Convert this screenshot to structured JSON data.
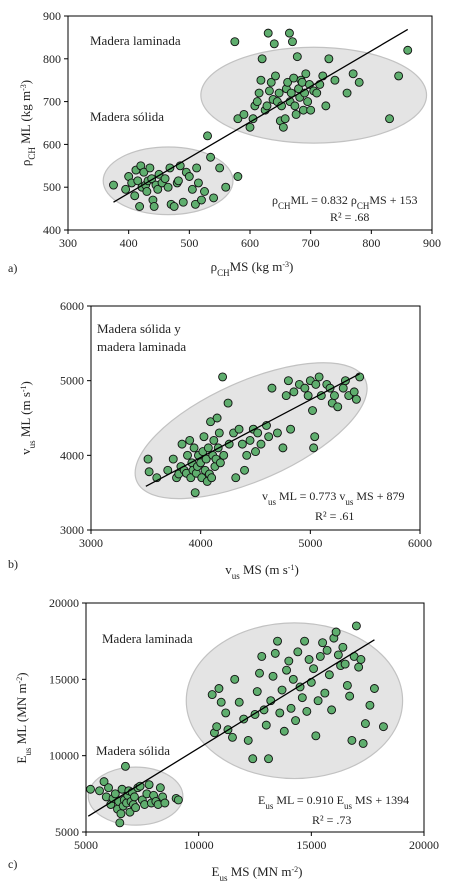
{
  "chart_data": [
    {
      "type": "scatter",
      "panel_label": "a)",
      "xlim": [
        300,
        900
      ],
      "ylim": [
        400,
        900
      ],
      "x_ticks": [
        300,
        400,
        500,
        600,
        700,
        800,
        900
      ],
      "y_ticks": [
        400,
        500,
        600,
        700,
        800,
        900
      ],
      "xlabel": {
        "main": "ρ",
        "sub": "CH",
        "rest": "MS  (kg m",
        "sup": "-3",
        "end": ")"
      },
      "ylabel": {
        "main": "ρ",
        "sub": "CH",
        "rest": " ML  (kg m",
        "sup": "-3",
        "end": ")"
      },
      "annotations": [
        {
          "text": "Madera laminada",
          "x": 340,
          "y": 840
        },
        {
          "text": "Madera sólida",
          "x": 340,
          "y": 685
        }
      ],
      "equation": {
        "parts": [
          "ρ",
          "CH",
          "ML = 0.832 ρ",
          "CH",
          "MS + 153"
        ],
        "r2": "R² = .68"
      },
      "regression": {
        "slope": 0.832,
        "intercept": 153,
        "x_range": [
          375,
          860
        ]
      },
      "ellipses": [
        {
          "cx": 465,
          "cy": 515,
          "rx": 107,
          "ry": 79
        },
        {
          "cx": 705,
          "cy": 715,
          "rx": 186,
          "ry": 112
        }
      ],
      "grid": false,
      "points": [
        [
          375,
          505
        ],
        [
          395,
          495
        ],
        [
          400,
          525
        ],
        [
          405,
          510
        ],
        [
          410,
          480
        ],
        [
          412,
          540
        ],
        [
          415,
          515
        ],
        [
          418,
          455
        ],
        [
          420,
          550
        ],
        [
          422,
          500
        ],
        [
          425,
          535
        ],
        [
          428,
          505
        ],
        [
          430,
          490
        ],
        [
          432,
          515
        ],
        [
          435,
          545
        ],
        [
          438,
          520
        ],
        [
          440,
          470
        ],
        [
          442,
          455
        ],
        [
          445,
          505
        ],
        [
          448,
          495
        ],
        [
          450,
          530
        ],
        [
          455,
          510
        ],
        [
          460,
          520
        ],
        [
          465,
          500
        ],
        [
          468,
          545
        ],
        [
          470,
          460
        ],
        [
          475,
          455
        ],
        [
          480,
          510
        ],
        [
          482,
          515
        ],
        [
          485,
          550
        ],
        [
          490,
          465
        ],
        [
          495,
          535
        ],
        [
          500,
          525
        ],
        [
          505,
          495
        ],
        [
          510,
          460
        ],
        [
          512,
          545
        ],
        [
          515,
          510
        ],
        [
          520,
          470
        ],
        [
          525,
          490
        ],
        [
          530,
          620
        ],
        [
          535,
          570
        ],
        [
          540,
          475
        ],
        [
          550,
          545
        ],
        [
          560,
          500
        ],
        [
          580,
          525
        ],
        [
          575,
          840
        ],
        [
          580,
          660
        ],
        [
          590,
          670
        ],
        [
          600,
          640
        ],
        [
          605,
          660
        ],
        [
          608,
          690
        ],
        [
          612,
          700
        ],
        [
          615,
          720
        ],
        [
          618,
          750
        ],
        [
          620,
          800
        ],
        [
          625,
          680
        ],
        [
          628,
          690
        ],
        [
          630,
          860
        ],
        [
          632,
          725
        ],
        [
          635,
          745
        ],
        [
          638,
          705
        ],
        [
          640,
          835
        ],
        [
          642,
          760
        ],
        [
          645,
          700
        ],
        [
          648,
          720
        ],
        [
          650,
          655
        ],
        [
          652,
          690
        ],
        [
          655,
          640
        ],
        [
          658,
          660
        ],
        [
          660,
          730
        ],
        [
          662,
          745
        ],
        [
          665,
          860
        ],
        [
          666,
          700
        ],
        [
          668,
          720
        ],
        [
          670,
          840
        ],
        [
          672,
          755
        ],
        [
          674,
          690
        ],
        [
          676,
          670
        ],
        [
          678,
          805
        ],
        [
          680,
          730
        ],
        [
          682,
          710
        ],
        [
          684,
          750
        ],
        [
          686,
          745
        ],
        [
          688,
          680
        ],
        [
          690,
          720
        ],
        [
          692,
          765
        ],
        [
          695,
          700
        ],
        [
          698,
          740
        ],
        [
          700,
          680
        ],
        [
          705,
          725
        ],
        [
          710,
          720
        ],
        [
          715,
          740
        ],
        [
          720,
          760
        ],
        [
          725,
          690
        ],
        [
          730,
          800
        ],
        [
          740,
          750
        ],
        [
          760,
          720
        ],
        [
          770,
          765
        ],
        [
          780,
          745
        ],
        [
          830,
          660
        ],
        [
          845,
          760
        ],
        [
          860,
          820
        ]
      ]
    },
    {
      "type": "scatter",
      "panel_label": "b)",
      "xlim": [
        3000,
        6000
      ],
      "ylim": [
        3000,
        6000
      ],
      "x_ticks": [
        3000,
        4000,
        5000,
        6000
      ],
      "y_ticks": [
        3000,
        4000,
        5000,
        6000
      ],
      "xlabel": {
        "main": "v",
        "sub": "us",
        "rest": " MS  (m s",
        "sup": "-1",
        "end": ")"
      },
      "ylabel": {
        "main": "v",
        "sub": "us",
        "rest": " ML  (m s",
        "sup": "-1",
        "end": ")"
      },
      "annotations": [
        {
          "text": "Madera sólida y",
          "x": 3080,
          "y": 5800
        },
        {
          "text": "madera laminada",
          "x": 3080,
          "y": 5590
        }
      ],
      "equation": {
        "parts": [
          "v",
          "us",
          " ML = 0.773 v",
          "us",
          " MS + 879"
        ],
        "r2": "R² = .61"
      },
      "regression": {
        "slope": 0.773,
        "intercept": 879,
        "x_range": [
          3500,
          5450
        ]
      },
      "ellipses": [
        {
          "cx": 4460,
          "cy": 4330,
          "rx": 1140,
          "ry": 660,
          "rot": -24
        }
      ],
      "grid": false,
      "points": [
        [
          3520,
          3950
        ],
        [
          3530,
          3780
        ],
        [
          3600,
          3700
        ],
        [
          3700,
          3800
        ],
        [
          3750,
          3950
        ],
        [
          3780,
          3700
        ],
        [
          3800,
          3750
        ],
        [
          3820,
          3850
        ],
        [
          3830,
          4150
        ],
        [
          3850,
          3800
        ],
        [
          3870,
          3760
        ],
        [
          3880,
          4000
        ],
        [
          3900,
          4200
        ],
        [
          3910,
          3700
        ],
        [
          3920,
          3900
        ],
        [
          3930,
          3800
        ],
        [
          3940,
          4100
        ],
        [
          3950,
          3500
        ],
        [
          3960,
          3760
        ],
        [
          3970,
          3850
        ],
        [
          3980,
          4000
        ],
        [
          4000,
          3900
        ],
        [
          4010,
          3700
        ],
        [
          4020,
          4050
        ],
        [
          4030,
          4250
        ],
        [
          4040,
          3800
        ],
        [
          4050,
          3950
        ],
        [
          4060,
          3650
        ],
        [
          4070,
          4100
        ],
        [
          4080,
          3750
        ],
        [
          4090,
          4450
        ],
        [
          4100,
          3700
        ],
        [
          4110,
          4000
        ],
        [
          4120,
          4200
        ],
        [
          4130,
          3850
        ],
        [
          4140,
          3950
        ],
        [
          4150,
          4500
        ],
        [
          4160,
          4100
        ],
        [
          4170,
          4300
        ],
        [
          4180,
          3900
        ],
        [
          4200,
          5050
        ],
        [
          4210,
          4000
        ],
        [
          4250,
          4700
        ],
        [
          4260,
          4150
        ],
        [
          4300,
          4300
        ],
        [
          4320,
          3700
        ],
        [
          4350,
          4350
        ],
        [
          4380,
          4150
        ],
        [
          4400,
          3800
        ],
        [
          4420,
          4000
        ],
        [
          4450,
          4200
        ],
        [
          4480,
          4350
        ],
        [
          4500,
          4050
        ],
        [
          4520,
          4300
        ],
        [
          4550,
          4150
        ],
        [
          4600,
          4400
        ],
        [
          4620,
          4250
        ],
        [
          4650,
          4900
        ],
        [
          4700,
          4300
        ],
        [
          4750,
          4100
        ],
        [
          4780,
          4800
        ],
        [
          4800,
          5000
        ],
        [
          4820,
          4350
        ],
        [
          4850,
          4850
        ],
        [
          4900,
          4950
        ],
        [
          4950,
          4900
        ],
        [
          4980,
          4800
        ],
        [
          5000,
          5000
        ],
        [
          5020,
          4600
        ],
        [
          5030,
          4100
        ],
        [
          5040,
          4250
        ],
        [
          5050,
          4950
        ],
        [
          5080,
          5050
        ],
        [
          5100,
          4800
        ],
        [
          5150,
          4950
        ],
        [
          5180,
          4900
        ],
        [
          5200,
          4700
        ],
        [
          5220,
          4800
        ],
        [
          5250,
          4650
        ],
        [
          5300,
          4900
        ],
        [
          5320,
          5000
        ],
        [
          5350,
          4800
        ],
        [
          5400,
          4850
        ],
        [
          5420,
          4750
        ],
        [
          5450,
          5050
        ]
      ]
    },
    {
      "type": "scatter",
      "panel_label": "c)",
      "xlim": [
        5000,
        20000
      ],
      "ylim": [
        5000,
        20000
      ],
      "x_ticks": [
        5000,
        10000,
        15000,
        20000
      ],
      "y_ticks": [
        5000,
        10000,
        15000,
        20000
      ],
      "xlabel": {
        "main": "E",
        "sub": "us",
        "rest": " MS  (MN m",
        "sup": "-2",
        "end": ")"
      },
      "ylabel": {
        "main": "E",
        "sub": "us",
        "rest": " ML  (MN m",
        "sup": "-2",
        "end": ")"
      },
      "annotations": [
        {
          "text": "Madera laminada",
          "x": 5700,
          "y": 18500
        },
        {
          "text": "Madera sólida",
          "x": 5600,
          "y": 10050
        }
      ],
      "equation": {
        "parts": [
          "E",
          "us",
          " ML = 0.910 E",
          "us",
          " MS + 1394"
        ],
        "r2": "R² = .73"
      },
      "regression": {
        "slope": 0.91,
        "intercept": 1394,
        "x_range": [
          5100,
          17800
        ]
      },
      "ellipses": [
        {
          "cx": 7200,
          "cy": 7350,
          "rx": 2100,
          "ry": 1900
        },
        {
          "cx": 14250,
          "cy": 13600,
          "rx": 4800,
          "ry": 5100
        }
      ],
      "grid": false,
      "points": [
        [
          5200,
          7800
        ],
        [
          5600,
          7700
        ],
        [
          5800,
          8300
        ],
        [
          5900,
          7300
        ],
        [
          6000,
          7900
        ],
        [
          6100,
          6800
        ],
        [
          6200,
          7200
        ],
        [
          6300,
          7500
        ],
        [
          6400,
          6500
        ],
        [
          6450,
          7000
        ],
        [
          6500,
          5600
        ],
        [
          6550,
          6200
        ],
        [
          6600,
          7800
        ],
        [
          6650,
          6700
        ],
        [
          6700,
          7100
        ],
        [
          6750,
          9300
        ],
        [
          6800,
          6900
        ],
        [
          6850,
          7400
        ],
        [
          6900,
          7700
        ],
        [
          6950,
          6300
        ],
        [
          7000,
          7000
        ],
        [
          7050,
          7600
        ],
        [
          7100,
          6800
        ],
        [
          7150,
          7300
        ],
        [
          7200,
          6600
        ],
        [
          7300,
          7900
        ],
        [
          7400,
          8000
        ],
        [
          7500,
          7100
        ],
        [
          7600,
          6800
        ],
        [
          7700,
          7500
        ],
        [
          7800,
          8100
        ],
        [
          7900,
          6900
        ],
        [
          8000,
          7400
        ],
        [
          8100,
          7000
        ],
        [
          8200,
          6800
        ],
        [
          8300,
          7900
        ],
        [
          8400,
          7300
        ],
        [
          8500,
          6900
        ],
        [
          9000,
          7200
        ],
        [
          9100,
          7100
        ],
        [
          10600,
          14000
        ],
        [
          10700,
          11500
        ],
        [
          10800,
          11900
        ],
        [
          10900,
          14400
        ],
        [
          11000,
          13500
        ],
        [
          11200,
          12800
        ],
        [
          11300,
          11700
        ],
        [
          11500,
          11200
        ],
        [
          11600,
          15000
        ],
        [
          11800,
          13500
        ],
        [
          12000,
          12400
        ],
        [
          12200,
          11000
        ],
        [
          12400,
          9800
        ],
        [
          12500,
          12700
        ],
        [
          12600,
          14200
        ],
        [
          12700,
          15400
        ],
        [
          12800,
          16500
        ],
        [
          12900,
          13000
        ],
        [
          13000,
          12000
        ],
        [
          13100,
          9800
        ],
        [
          13200,
          13600
        ],
        [
          13300,
          15200
        ],
        [
          13400,
          16700
        ],
        [
          13500,
          17500
        ],
        [
          13600,
          12800
        ],
        [
          13700,
          14300
        ],
        [
          13800,
          11600
        ],
        [
          13900,
          15600
        ],
        [
          14000,
          16200
        ],
        [
          14100,
          13100
        ],
        [
          14200,
          15000
        ],
        [
          14300,
          12300
        ],
        [
          14400,
          16800
        ],
        [
          14500,
          14500
        ],
        [
          14600,
          13800
        ],
        [
          14700,
          17500
        ],
        [
          14800,
          12900
        ],
        [
          14900,
          16300
        ],
        [
          15000,
          14800
        ],
        [
          15100,
          15700
        ],
        [
          15200,
          11300
        ],
        [
          15300,
          13600
        ],
        [
          15400,
          16500
        ],
        [
          15500,
          17400
        ],
        [
          15600,
          14100
        ],
        [
          15700,
          16900
        ],
        [
          15800,
          15300
        ],
        [
          15900,
          13000
        ],
        [
          16000,
          17700
        ],
        [
          16100,
          18100
        ],
        [
          16200,
          16600
        ],
        [
          16300,
          15900
        ],
        [
          16400,
          17100
        ],
        [
          16500,
          16000
        ],
        [
          16600,
          14600
        ],
        [
          16700,
          13900
        ],
        [
          16800,
          11000
        ],
        [
          16900,
          16500
        ],
        [
          17000,
          18500
        ],
        [
          17100,
          15800
        ],
        [
          17200,
          16300
        ],
        [
          17300,
          10800
        ],
        [
          17400,
          12100
        ],
        [
          17600,
          13300
        ],
        [
          17800,
          14400
        ],
        [
          18200,
          11900
        ]
      ]
    }
  ]
}
